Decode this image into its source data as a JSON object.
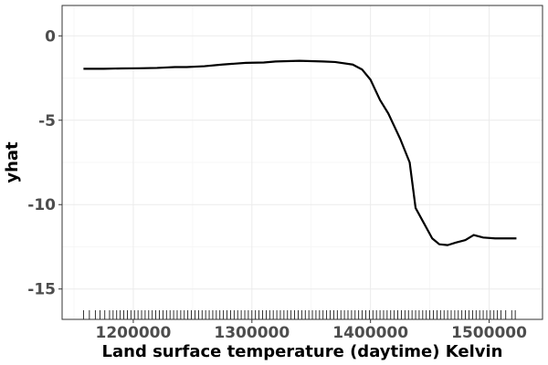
{
  "chart_data": {
    "type": "line",
    "xlabel": "Land surface temperature (daytime) Kelvin",
    "ylabel": "yhat",
    "xlim": [
      1140000,
      1545000
    ],
    "ylim": [
      -16.8,
      1.8
    ],
    "x_ticks": [
      1200000,
      1300000,
      1400000,
      1500000
    ],
    "x_tick_labels": [
      "1200000",
      "1300000",
      "1400000",
      "1500000"
    ],
    "y_ticks": [
      0,
      -5,
      -10,
      -15
    ],
    "y_tick_labels": [
      "0",
      "-5",
      "-10",
      "-15"
    ],
    "grid": true,
    "colors": {
      "line": "#000000",
      "grid": "#ebebeb",
      "axis_text": "#4d4d4d"
    },
    "series": [
      {
        "x": [
          1158000,
          1175000,
          1190000,
          1205000,
          1220000,
          1235000,
          1245000,
          1260000,
          1275000,
          1285000,
          1295000,
          1310000,
          1320000,
          1330000,
          1340000,
          1350000,
          1360000,
          1370000,
          1385000,
          1393000,
          1400000,
          1408000,
          1415000,
          1425000,
          1433000,
          1438000,
          1445000,
          1452000,
          1458000,
          1465000,
          1472000,
          1480000,
          1487000,
          1495000,
          1505000,
          1515000,
          1523000
        ],
        "y": [
          -1.95,
          -1.95,
          -1.93,
          -1.92,
          -1.9,
          -1.85,
          -1.85,
          -1.8,
          -1.7,
          -1.65,
          -1.6,
          -1.58,
          -1.52,
          -1.5,
          -1.48,
          -1.5,
          -1.52,
          -1.55,
          -1.7,
          -2.0,
          -2.6,
          -3.8,
          -4.6,
          -6.1,
          -7.5,
          -10.2,
          -11.1,
          -12.0,
          -12.35,
          -12.4,
          -12.25,
          -12.1,
          -11.8,
          -11.95,
          -12.0,
          -12.0,
          -12.0
        ]
      }
    ],
    "rug_x": [
      1158000,
      1163000,
      1168000,
      1172000,
      1176000,
      1180000,
      1183000,
      1186000,
      1189000,
      1192000,
      1195000,
      1198000,
      1201000,
      1204000,
      1207000,
      1210000,
      1213000,
      1216000,
      1219000,
      1222000,
      1225000,
      1228000,
      1231000,
      1234000,
      1237000,
      1240000,
      1243000,
      1246000,
      1249000,
      1252000,
      1255000,
      1258000,
      1261000,
      1264000,
      1267000,
      1270000,
      1273000,
      1276000,
      1279000,
      1282000,
      1285000,
      1288000,
      1291000,
      1294000,
      1297000,
      1300000,
      1303000,
      1306000,
      1309000,
      1312000,
      1315000,
      1318000,
      1321000,
      1324000,
      1327000,
      1330000,
      1333000,
      1336000,
      1339000,
      1342000,
      1345000,
      1348000,
      1351000,
      1354000,
      1357000,
      1360000,
      1363000,
      1366000,
      1369000,
      1372000,
      1375000,
      1378000,
      1381000,
      1384000,
      1387000,
      1390000,
      1393000,
      1396000,
      1399000,
      1402000,
      1405000,
      1408000,
      1411000,
      1414000,
      1417000,
      1420000,
      1423000,
      1426000,
      1429000,
      1432000,
      1435000,
      1438000,
      1441000,
      1444000,
      1447000,
      1450000,
      1453000,
      1456000,
      1459000,
      1462000,
      1465000,
      1468000,
      1471000,
      1474000,
      1477000,
      1480000,
      1483000,
      1486000,
      1489000,
      1492000,
      1495000,
      1498000,
      1501000,
      1504000,
      1507000,
      1510000,
      1514000,
      1519000,
      1522000
    ]
  }
}
